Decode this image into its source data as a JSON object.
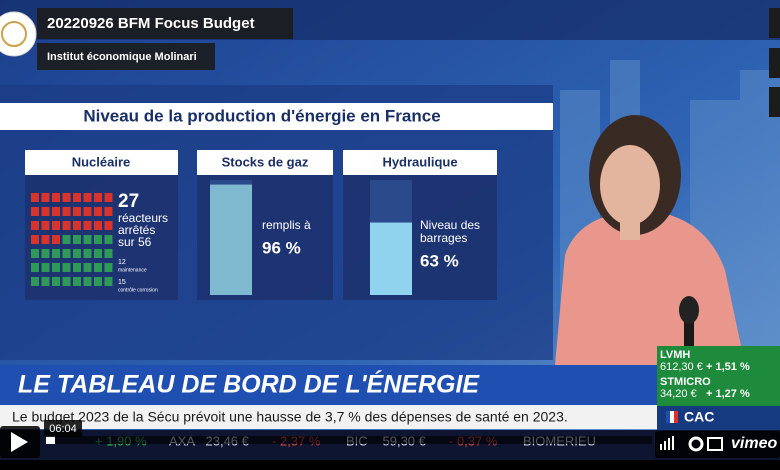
{
  "player": {
    "title": "20220926 BFM Focus Budget",
    "byline": "Institut économique Molinari",
    "time": "06:04",
    "brand": "vimeo"
  },
  "broadcast": {
    "panel_title": "Niveau de la production d'énergie en France",
    "nuclear": {
      "heading": "Nucléaire",
      "count": 27,
      "total": 56,
      "lines": [
        "réacteurs",
        "arrêtés",
        "sur 56"
      ],
      "breakdown": [
        {
          "count": 12,
          "label": "maintenance"
        },
        {
          "count": 15,
          "label": "contrôle corrosion"
        }
      ]
    },
    "gas": {
      "heading": "Stocks de gaz",
      "lines": [
        "remplis à"
      ],
      "value": 96,
      "value_label": "96 %"
    },
    "hydro": {
      "heading": "Hydraulique",
      "lines": [
        "Niveau des",
        "barrages"
      ],
      "value": 63,
      "value_label": "63 %"
    },
    "banner": "LE TABLEAU DE BORD DE L'ÉNERGIE",
    "ticker": "Le budget 2023 de la Sécu prévoit une hausse de 3,7 % des dépenses de santé en 2023.",
    "quotes": [
      {
        "name": "LVMH",
        "price": "612,30 €",
        "change": "+ 1,51 %"
      },
      {
        "name": "STMICRO",
        "price": "34,20 €",
        "change": "+ 1,27 %"
      }
    ],
    "index": "CAC",
    "market_strip": [
      "+ 1,90 %",
      "AXA",
      "23,46 €",
      "- 2,37 %",
      "BIC",
      "59,30 €",
      "- 0,37 %",
      "BIOMERIEU"
    ]
  }
}
